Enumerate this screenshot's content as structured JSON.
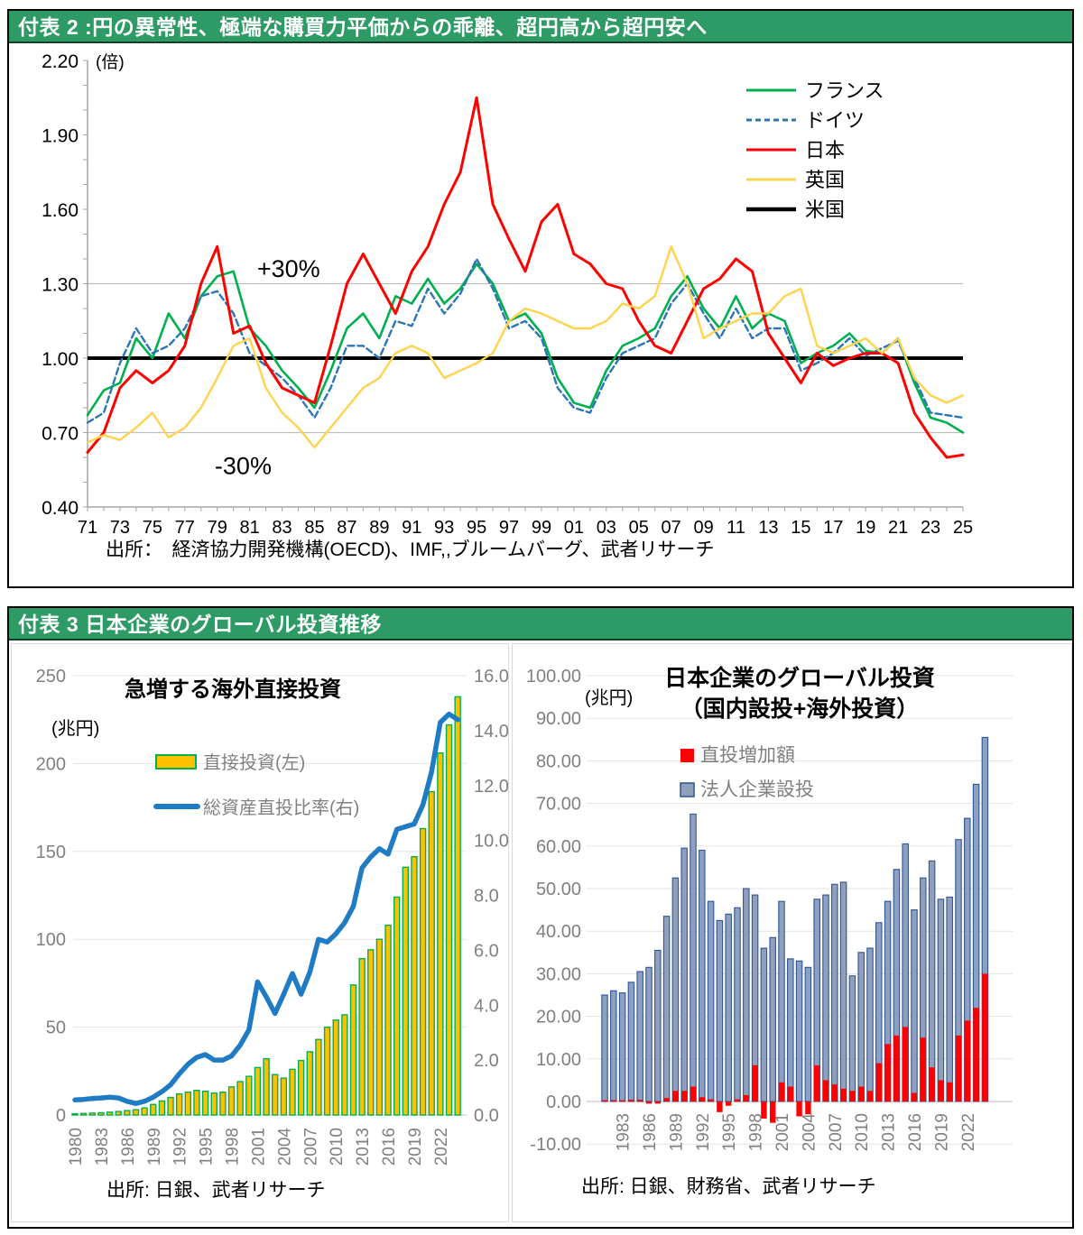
{
  "panel1": {
    "header": "付表 2 :円の異常性、極端な購買力平価からの乖離、超円高から超円安へ",
    "header_bg": "#2E9B67",
    "source": "出所：　経済協力開発機構(OECD)、IMF,,ブルームバーグ、武者リサーチ"
  },
  "panel2": {
    "header": "付表 3 日本企業のグローバル投資推移",
    "header_bg": "#2E9B67"
  },
  "chart_data": [
    {
      "type": "line",
      "title": "円の異常性、極端な購買力平価からの乖離、超円高から超円安へ",
      "unit": "(倍)",
      "x_start": 1971,
      "x_end": 2025,
      "x_tick_labels": [
        "71",
        "73",
        "75",
        "77",
        "79",
        "81",
        "83",
        "85",
        "87",
        "89",
        "91",
        "93",
        "95",
        "97",
        "99",
        "01",
        "03",
        "05",
        "07",
        "09",
        "11",
        "13",
        "15",
        "17",
        "19",
        "21",
        "23",
        "25"
      ],
      "ylim": [
        0.4,
        2.2
      ],
      "yticks": [
        "2.20",
        "1.90",
        "1.60",
        "1.30",
        "1.00",
        "0.70",
        "0.40"
      ],
      "gridlines": [
        1.3,
        0.7
      ],
      "grid_color": "#BFBFBF",
      "baseline_value": 1.0,
      "annotations": [
        {
          "text": "+30%",
          "year": 1983.4,
          "value": 1.36
        },
        {
          "text": "-30%",
          "year": 1980.6,
          "value": 0.565
        }
      ],
      "legend_position": "top-right",
      "source": "出所：　経済協力開発機構(OECD)、IMF,,ブルームバーグ、武者リサーチ",
      "series": [
        {
          "name": "フランス",
          "color": "#00B050",
          "width": 2.6,
          "values": [
            0.77,
            0.87,
            0.9,
            1.08,
            1.0,
            1.18,
            1.08,
            1.25,
            1.33,
            1.35,
            1.12,
            1.05,
            0.95,
            0.88,
            0.8,
            0.95,
            1.12,
            1.18,
            1.08,
            1.25,
            1.22,
            1.32,
            1.22,
            1.28,
            1.38,
            1.3,
            1.15,
            1.18,
            1.1,
            0.92,
            0.82,
            0.8,
            0.95,
            1.05,
            1.08,
            1.12,
            1.25,
            1.33,
            1.2,
            1.12,
            1.25,
            1.12,
            1.18,
            1.15,
            0.98,
            1.02,
            1.05,
            1.1,
            1.03,
            1.02,
            1.08,
            0.9,
            0.76,
            0.74,
            0.7
          ]
        },
        {
          "name": "ドイツ",
          "color": "#2E75B6",
          "width": 2.4,
          "dash": "7,4",
          "values": [
            0.74,
            0.78,
            0.98,
            1.12,
            1.02,
            1.05,
            1.12,
            1.25,
            1.27,
            1.18,
            1.02,
            0.97,
            0.92,
            0.85,
            0.76,
            0.88,
            1.05,
            1.05,
            1.0,
            1.15,
            1.13,
            1.28,
            1.18,
            1.26,
            1.4,
            1.28,
            1.12,
            1.15,
            1.08,
            0.88,
            0.8,
            0.78,
            0.92,
            1.02,
            1.05,
            1.08,
            1.22,
            1.3,
            1.18,
            1.08,
            1.2,
            1.08,
            1.12,
            1.12,
            0.95,
            0.98,
            1.02,
            1.08,
            1.01,
            1.04,
            1.07,
            0.92,
            0.78,
            0.77,
            0.76
          ]
        },
        {
          "name": "日本",
          "color": "#FF0000",
          "width": 3,
          "values": [
            0.62,
            0.7,
            0.88,
            0.95,
            0.9,
            0.95,
            1.05,
            1.3,
            1.45,
            1.1,
            1.13,
            0.98,
            0.88,
            0.85,
            0.82,
            1.05,
            1.3,
            1.42,
            1.3,
            1.18,
            1.35,
            1.45,
            1.62,
            1.75,
            2.05,
            1.62,
            1.48,
            1.35,
            1.55,
            1.62,
            1.42,
            1.38,
            1.3,
            1.28,
            1.15,
            1.05,
            1.02,
            1.15,
            1.28,
            1.32,
            1.4,
            1.35,
            1.1,
            1.0,
            0.9,
            1.02,
            0.97,
            1.0,
            1.02,
            1.02,
            0.98,
            0.78,
            0.68,
            0.6,
            0.61
          ]
        },
        {
          "name": "英国",
          "color": "#FFD34D",
          "width": 2.4,
          "values": [
            0.66,
            0.69,
            0.67,
            0.72,
            0.78,
            0.68,
            0.72,
            0.8,
            0.92,
            1.05,
            1.08,
            0.88,
            0.78,
            0.72,
            0.64,
            0.72,
            0.8,
            0.88,
            0.92,
            1.02,
            1.05,
            1.02,
            0.92,
            0.95,
            0.98,
            1.02,
            1.15,
            1.2,
            1.18,
            1.15,
            1.12,
            1.12,
            1.15,
            1.22,
            1.2,
            1.25,
            1.45,
            1.3,
            1.08,
            1.12,
            1.15,
            1.18,
            1.18,
            1.25,
            1.28,
            1.05,
            1.02,
            1.05,
            1.08,
            1.02,
            1.08,
            0.92,
            0.85,
            0.82,
            0.85
          ]
        },
        {
          "name": "米国",
          "color": "#000000",
          "width": 4,
          "flat": 1.0
        }
      ]
    },
    {
      "type": "bar-line",
      "title": "急増する海外直接投資",
      "unit_left": "(兆円)",
      "categories": [
        1980,
        1981,
        1982,
        1983,
        1984,
        1985,
        1986,
        1987,
        1988,
        1989,
        1990,
        1991,
        1992,
        1993,
        1994,
        1995,
        1996,
        1997,
        1998,
        1999,
        2000,
        2001,
        2002,
        2003,
        2004,
        2005,
        2006,
        2007,
        2008,
        2009,
        2010,
        2011,
        2012,
        2013,
        2014,
        2015,
        2016,
        2017,
        2018,
        2019,
        2020,
        2021,
        2022,
        2023,
        2024
      ],
      "bars": {
        "name": "直接投資(左)",
        "fill": "#FFC000",
        "stroke": "#00B050",
        "values": [
          0.7,
          0.9,
          1.1,
          1.3,
          1.6,
          2,
          2.5,
          3,
          4,
          6,
          8,
          10,
          12,
          13,
          14,
          13.5,
          12.5,
          13,
          16,
          19,
          22,
          27,
          32,
          23,
          21,
          26,
          31,
          36,
          43,
          50,
          54,
          57,
          74,
          89,
          94,
          100,
          108,
          124,
          141,
          147,
          163,
          184,
          206,
          222,
          238
        ]
      },
      "line": {
        "name": "総資産直投比率(右)",
        "color": "#1F7BC4",
        "values": [
          0.55,
          0.57,
          0.6,
          0.62,
          0.65,
          0.62,
          0.5,
          0.42,
          0.5,
          0.65,
          0.85,
          1.1,
          1.5,
          1.85,
          2.1,
          2.2,
          2.0,
          2.0,
          2.15,
          2.55,
          3.1,
          4.85,
          4.3,
          3.7,
          4.4,
          5.15,
          4.4,
          5.2,
          6.4,
          6.3,
          6.6,
          7.0,
          7.6,
          9.0,
          9.4,
          9.7,
          9.5,
          10.4,
          10.5,
          10.6,
          11.3,
          12.5,
          14.3,
          14.6,
          14.4
        ]
      },
      "ylim_left": [
        0,
        250
      ],
      "yticks_left": [
        250,
        200,
        150,
        100,
        50,
        0
      ],
      "ylim_right": [
        0,
        16
      ],
      "yticks_right": [
        "16.0",
        "14.0",
        "12.0",
        "10.0",
        "8.0",
        "6.0",
        "4.0",
        "2.0",
        "0.0"
      ],
      "label_first": 1980,
      "label_step": 3,
      "label_last": 2022,
      "source": "出所: 日銀、武者リサーチ"
    },
    {
      "type": "bar",
      "title_lines": [
        "日本企業のグローバル投資",
        "（国内設投+海外投資）"
      ],
      "unit": "(兆円)",
      "categories": [
        1981,
        1982,
        1983,
        1984,
        1985,
        1986,
        1987,
        1988,
        1989,
        1990,
        1991,
        1992,
        1993,
        1994,
        1995,
        1996,
        1997,
        1998,
        1999,
        2000,
        2001,
        2002,
        2003,
        2004,
        2005,
        2006,
        2007,
        2008,
        2009,
        2010,
        2011,
        2012,
        2013,
        2014,
        2015,
        2016,
        2017,
        2018,
        2019,
        2020,
        2021,
        2022,
        2023,
        2024
      ],
      "series": [
        {
          "name": "法人企業設投",
          "fill": "#8EA0BE",
          "stroke": "#2E5596",
          "values": [
            25,
            26,
            25.5,
            28,
            30.5,
            31.5,
            35.5,
            43.5,
            52.5,
            59.5,
            67.5,
            59,
            47,
            42.5,
            44,
            45.5,
            50,
            48.5,
            36,
            38.5,
            47,
            33.5,
            33,
            31.5,
            47.5,
            48.5,
            51,
            51.5,
            29.5,
            35,
            36,
            42,
            47,
            54.5,
            60.5,
            45,
            52.5,
            56.5,
            47.5,
            48,
            61.5,
            66.5,
            74.5,
            85.5
          ]
        },
        {
          "name": "直投増加額",
          "fill": "#FF0000",
          "values": [
            0.3,
            0.3,
            0.3,
            0.4,
            0.4,
            -0.5,
            -0.5,
            0.8,
            2.5,
            2.5,
            3.5,
            1,
            0.5,
            -2.5,
            -1,
            0.5,
            1.5,
            8.5,
            -4,
            -5,
            4.5,
            3.5,
            -3.5,
            -3,
            8.5,
            5,
            4,
            3,
            2.5,
            3.5,
            2.5,
            9,
            13.5,
            15.5,
            17.5,
            2,
            15,
            8,
            5,
            4.5,
            15.5,
            19,
            22,
            30
          ]
        }
      ],
      "legend_order": [
        "直投増加額",
        "法人企業設投"
      ],
      "ylim": [
        -10,
        100
      ],
      "yticks": [
        "100.00",
        "90.00",
        "80.00",
        "70.00",
        "60.00",
        "50.00",
        "40.00",
        "30.00",
        "20.00",
        "10.00",
        "0.00",
        "-10.00"
      ],
      "label_first": 1983,
      "label_step": 3,
      "label_last": 2022,
      "source": "出所: 日銀、財務省、武者リサーチ"
    }
  ]
}
